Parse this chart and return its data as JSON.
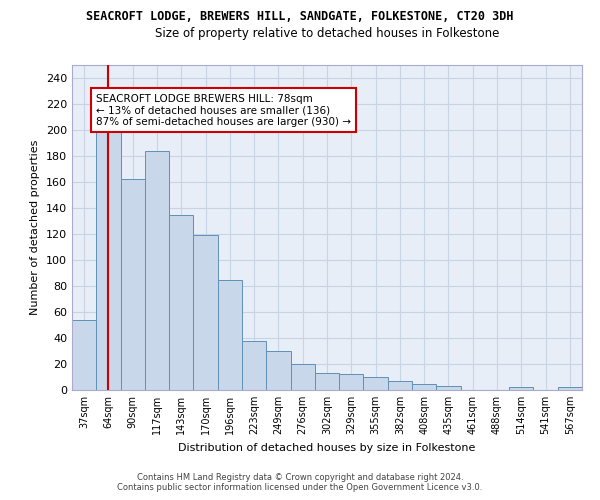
{
  "title1": "SEACROFT LODGE, BREWERS HILL, SANDGATE, FOLKESTONE, CT20 3DH",
  "title2": "Size of property relative to detached houses in Folkestone",
  "xlabel": "Distribution of detached houses by size in Folkestone",
  "ylabel": "Number of detached properties",
  "categories": [
    "37sqm",
    "64sqm",
    "90sqm",
    "117sqm",
    "143sqm",
    "170sqm",
    "196sqm",
    "223sqm",
    "249sqm",
    "276sqm",
    "302sqm",
    "329sqm",
    "355sqm",
    "382sqm",
    "408sqm",
    "435sqm",
    "461sqm",
    "488sqm",
    "514sqm",
    "541sqm",
    "567sqm"
  ],
  "values": [
    54,
    201,
    162,
    184,
    135,
    119,
    85,
    38,
    30,
    20,
    13,
    12,
    10,
    7,
    5,
    3,
    0,
    0,
    2,
    0,
    2
  ],
  "bar_color": "#c8d8ea",
  "bar_edge_color": "#6090b8",
  "vline_x_idx": 1,
  "vline_color": "#cc0000",
  "annotation_text": "SEACROFT LODGE BREWERS HILL: 78sqm\n← 13% of detached houses are smaller (136)\n87% of semi-detached houses are larger (930) →",
  "annotation_box_color": "#ffffff",
  "annotation_box_edge": "#cc0000",
  "ylim": [
    0,
    250
  ],
  "yticks": [
    0,
    20,
    40,
    60,
    80,
    100,
    120,
    140,
    160,
    180,
    200,
    220,
    240
  ],
  "grid_color": "#c8d4e4",
  "background_color": "#e8eef8",
  "footer1": "Contains HM Land Registry data © Crown copyright and database right 2024.",
  "footer2": "Contains public sector information licensed under the Open Government Licence v3.0."
}
